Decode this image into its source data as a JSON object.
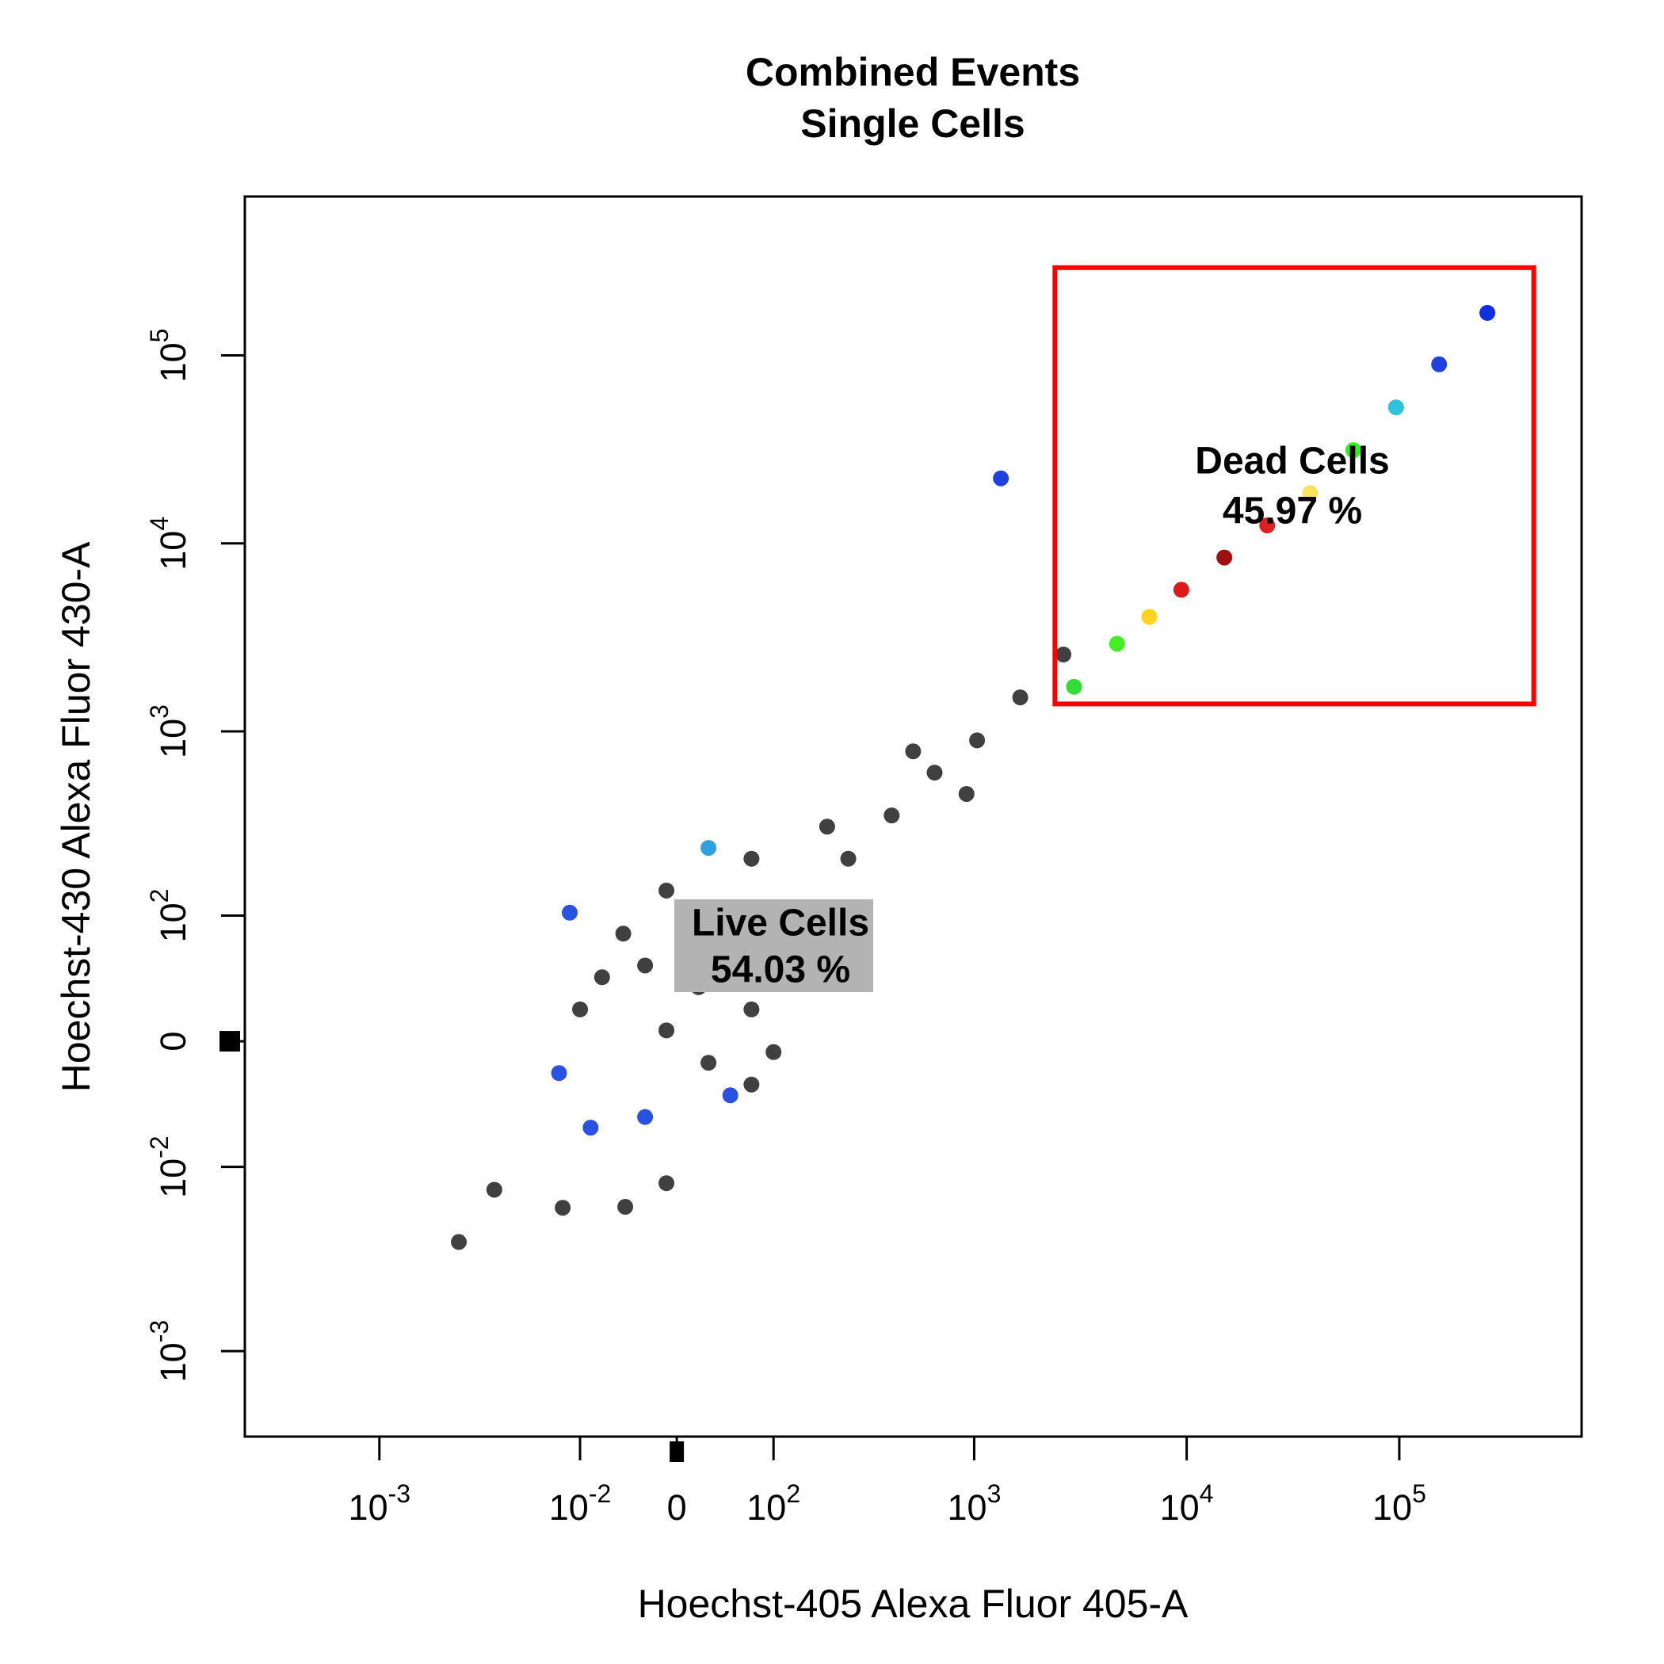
{
  "chart_data": {
    "type": "scatter",
    "title": "Combined Events",
    "subtitle": "Single Cells",
    "x_label": "Hoechst-405 Alexa Fluor 405-A",
    "y_label": "Hoechst-430 Alexa Fluor 430-A",
    "xscale": "logicle",
    "yscale": "logicle",
    "xlim": [
      -4300,
      720000
    ],
    "ylim": [
      -2850,
      700000
    ],
    "xticks": [
      {
        "value": -1000,
        "label": "10",
        "exponent": "-3"
      },
      {
        "value": -100,
        "label": "10",
        "exponent": "-2"
      },
      0,
      {
        "value": 100,
        "label": "10",
        "exponent": "2"
      },
      {
        "value": 1000,
        "label": "10",
        "exponent": "3"
      },
      {
        "value": 10000,
        "label": "10",
        "exponent": "4"
      },
      {
        "value": 100000,
        "label": "10",
        "exponent": "5"
      }
    ],
    "yticks": [
      {
        "value": -1000,
        "label": "10",
        "exponent": "-3"
      },
      {
        "value": -100,
        "label": "10",
        "exponent": "-2"
      },
      0,
      {
        "value": 100,
        "label": "10",
        "exponent": "2"
      },
      {
        "value": 1000,
        "label": "10",
        "exponent": "3"
      },
      {
        "value": 10000,
        "label": "10",
        "exponent": "4"
      },
      {
        "value": 100000,
        "label": "10",
        "exponent": "5"
      }
    ],
    "x": [
      -72,
      -28,
      19,
      72,
      -9,
      -49,
      49,
      132,
      100,
      28,
      173,
      250,
      406,
      650,
      1032,
      1648,
      2632,
      72,
      -9,
      -100,
      72,
      196,
      514,
      920,
      -132,
      -86,
      49,
      -115,
      28,
      -28,
      2952,
      4704,
      6672,
      9440,
      15040,
      23920,
      38080,
      60800,
      96560,
      153920,
      259520,
      1336,
      -420,
      -283,
      -126,
      -47,
      -9
    ],
    "y": [
      39,
      48,
      32,
      18,
      6,
      78,
      78,
      48,
      -6,
      -12,
      104,
      208,
      356,
      603,
      896,
      1517,
      2565,
      208,
      139,
      18,
      -25,
      310,
      783,
      464,
      -18,
      -57,
      -32,
      104,
      238,
      -48,
      1728,
      2925,
      4068,
      5670,
      8415,
      12465,
      18495,
      31320,
      52920,
      89640,
      168300,
      22185,
      -261,
      -135,
      -170,
      -168,
      -124
    ],
    "point_colors": [
      "#404040",
      "#404040",
      "#404040",
      "#404040",
      "#404040",
      "#404040",
      "#404040",
      "#404040",
      "#404040",
      "#404040",
      "#404040",
      "#404040",
      "#404040",
      "#404040",
      "#404040",
      "#404040",
      "#404040",
      "#404040",
      "#404040",
      "#404040",
      "#404040",
      "#404040",
      "#404040",
      "#404040",
      "#2a52e0",
      "#2a52e0",
      "#2a52e0",
      "#2a52e0",
      "#30a0e0",
      "#2a52e0",
      "#33dd33",
      "#44ee22",
      "#ffd21e",
      "#dd1a1a",
      "#a01010",
      "#dd2020",
      "#ffe060",
      "#33ee22",
      "#30c0e0",
      "#2040e0",
      "#1030e0",
      "#2040e0",
      "#404040",
      "#404040",
      "#404040",
      "#404040",
      "#404040"
    ],
    "gates": [
      {
        "name": "Dead Cells",
        "percent": 45.97,
        "value_label": "45.97 %",
        "color": "#ff0000",
        "xrange": [
          2400,
          429000
        ],
        "yrange": [
          1400,
          293000
        ]
      },
      {
        "name": "Live Cells",
        "percent": 54.03,
        "value_label": "54.03 %"
      }
    ]
  }
}
